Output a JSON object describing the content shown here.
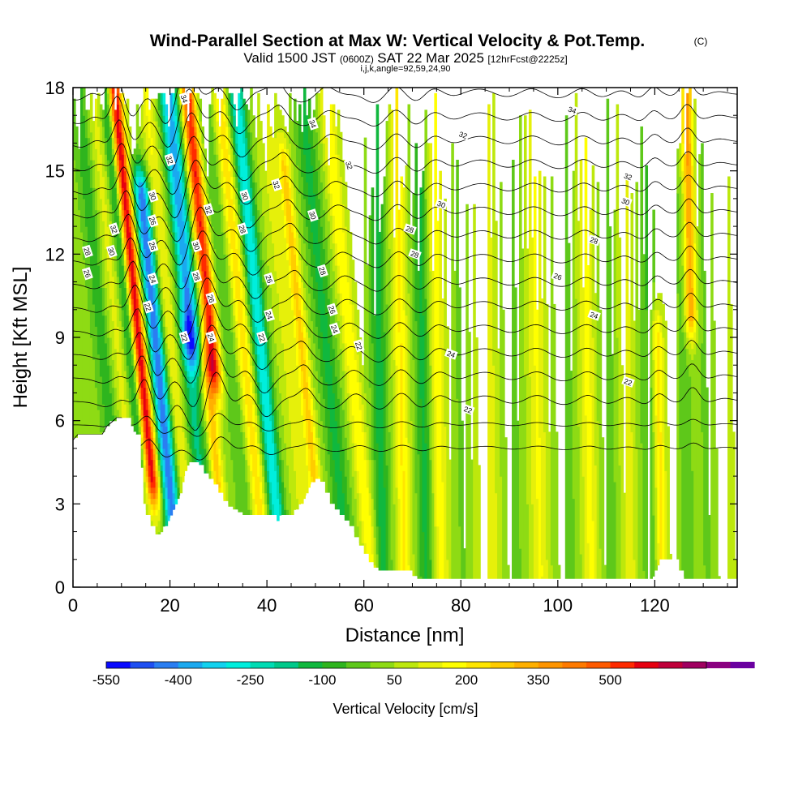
{
  "chart_data": {
    "type": "heatmap",
    "title": "Wind-Parallel Section at Max W: Vertical Velocity & Pot.Temp.",
    "title_mark": "(C)",
    "subtitle": {
      "valid": "Valid 1500 JST",
      "utc": "(0600Z)",
      "date": "SAT 22 Mar 2025",
      "forecast": "[12hrFcst@2225z]"
    },
    "params": "i,j,k,angle=92,59,24,90",
    "xlabel": "Distance [nm]",
    "ylabel": "Height [Kft MSL]",
    "xlim": [
      0,
      137
    ],
    "ylim": [
      0,
      18
    ],
    "xticks": [
      0,
      20,
      40,
      60,
      80,
      100,
      120
    ],
    "yticks": [
      0,
      3,
      6,
      9,
      12,
      15,
      18
    ],
    "grid": false,
    "colorbar": {
      "label": "Vertical Velocity [cm/s]",
      "min": -550,
      "max": 700,
      "step": 50,
      "tick_values": [
        -550,
        -400,
        -250,
        -100,
        50,
        200,
        350,
        500
      ],
      "tick_labels": [
        "-550",
        "-400",
        "-250",
        "-100",
        "50",
        "200",
        "350",
        "500"
      ],
      "colors": [
        "#0a0aff",
        "#1f4ff2",
        "#2a7ef2",
        "#1aa9f0",
        "#12d2ef",
        "#00eedd",
        "#00dcb4",
        "#00c98a",
        "#10b83e",
        "#2eb51e",
        "#5ec81a",
        "#8edb14",
        "#bde80c",
        "#e6f00a",
        "#ffff00",
        "#ffe600",
        "#ffcc00",
        "#ffb000",
        "#ff9500",
        "#ff7a00",
        "#ff5a00",
        "#ff2a00",
        "#e60010",
        "#c0003a",
        "#a00060",
        "#8a0080",
        "#6a00a0"
      ]
    },
    "w_features": [
      {
        "x": 3,
        "w": -20,
        "width": 2.0,
        "bottom": 6,
        "top": 18
      },
      {
        "x": 6,
        "w": -120,
        "width": 1.6,
        "bottom": 4,
        "top": 18
      },
      {
        "x": 9,
        "w": 80,
        "width": 1.8,
        "bottom": 5,
        "top": 18
      },
      {
        "x": 11.5,
        "w": -180,
        "width": 1.2,
        "bottom": 5,
        "top": 18
      },
      {
        "x": 13.5,
        "w": 560,
        "width": 1.3,
        "bottom": 4,
        "top": 18
      },
      {
        "x": 17,
        "w": -480,
        "width": 1.6,
        "bottom": 2,
        "top": 14
      },
      {
        "x": 20,
        "w": 120,
        "width": 1.5,
        "bottom": 3,
        "top": 18
      },
      {
        "x": 24.5,
        "w": -430,
        "width": 1.8,
        "bottom": 9,
        "top": 18
      },
      {
        "x": 23.5,
        "w": -200,
        "width": 1.8,
        "bottom": 4,
        "top": 9
      },
      {
        "x": 28.5,
        "w": 520,
        "width": 1.4,
        "bottom": 8,
        "top": 18
      },
      {
        "x": 27,
        "w": 250,
        "width": 1.2,
        "bottom": 4,
        "top": 8
      },
      {
        "x": 32,
        "w": -80,
        "width": 1.8,
        "bottom": 3,
        "top": 18
      },
      {
        "x": 35,
        "w": 200,
        "width": 1.5,
        "bottom": 3,
        "top": 18
      },
      {
        "x": 38.5,
        "w": -330,
        "width": 1.6,
        "bottom": 2,
        "top": 18
      },
      {
        "x": 44,
        "w": 80,
        "width": 2.0,
        "bottom": 3,
        "top": 18
      },
      {
        "x": 47,
        "w": 230,
        "width": 1.2,
        "bottom": 3,
        "top": 15
      },
      {
        "x": 52,
        "w": -150,
        "width": 2.0,
        "bottom": 2,
        "top": 18
      },
      {
        "x": 57,
        "w": 160,
        "width": 1.5,
        "bottom": 1,
        "top": 18
      },
      {
        "x": 63,
        "w": -160,
        "width": 1.6,
        "bottom": 0.5,
        "top": 18
      },
      {
        "x": 67.5,
        "w": 170,
        "width": 1.4,
        "bottom": 0.5,
        "top": 18
      },
      {
        "x": 72,
        "w": -150,
        "width": 1.6,
        "bottom": 0.5,
        "top": 18
      },
      {
        "x": 75,
        "w": 140,
        "width": 1.6,
        "bottom": 0.5,
        "top": 18
      },
      {
        "x": 79.5,
        "w": -40,
        "width": 1.4,
        "bottom": 0.5,
        "top": 18
      },
      {
        "x": 85,
        "w": 110,
        "width": 2.4,
        "bottom": 0.5,
        "top": 18
      },
      {
        "x": 90,
        "w": -60,
        "width": 2.0,
        "bottom": 0.5,
        "top": 18
      },
      {
        "x": 95.5,
        "w": 120,
        "width": 1.8,
        "bottom": 0.5,
        "top": 18
      },
      {
        "x": 101,
        "w": -70,
        "width": 2.0,
        "bottom": 0.5,
        "top": 18
      },
      {
        "x": 106,
        "w": 130,
        "width": 1.6,
        "bottom": 0.5,
        "top": 18
      },
      {
        "x": 110,
        "w": -60,
        "width": 1.8,
        "bottom": 0.5,
        "top": 18
      },
      {
        "x": 114,
        "w": 90,
        "width": 1.6,
        "bottom": 0.5,
        "top": 18
      },
      {
        "x": 118.5,
        "w": -90,
        "width": 1.8,
        "bottom": 0.5,
        "top": 18
      },
      {
        "x": 120.5,
        "w": 200,
        "width": 1.2,
        "bottom": 0.5,
        "top": 9
      },
      {
        "x": 126,
        "w": -60,
        "width": 1.6,
        "bottom": 0.5,
        "top": 14
      },
      {
        "x": 127.5,
        "w": 330,
        "width": 1.2,
        "bottom": 10,
        "top": 18
      },
      {
        "x": 130,
        "w": -40,
        "width": 1.6,
        "bottom": 0.5,
        "top": 18
      },
      {
        "x": 134,
        "w": 60,
        "width": 1.6,
        "bottom": 0.5,
        "top": 18
      }
    ],
    "terrain": {
      "x": [
        0,
        1,
        6,
        7,
        9,
        10,
        12,
        12.5,
        13,
        14,
        14.5,
        15,
        16,
        17,
        18,
        19,
        20,
        21,
        22,
        23,
        24,
        25,
        26,
        27,
        28,
        29,
        30,
        31,
        32,
        33,
        34,
        35,
        36,
        37,
        38,
        39,
        40,
        41,
        42,
        43,
        44,
        45,
        46,
        47,
        48,
        49,
        50,
        51,
        52,
        53,
        54,
        55,
        56,
        57,
        58,
        59,
        60,
        61,
        62,
        63,
        66,
        69,
        70,
        71,
        78,
        80,
        81,
        88,
        100,
        108,
        117,
        119,
        119.5,
        120,
        121,
        122,
        124,
        125,
        126,
        128,
        136,
        137
      ],
      "y": [
        5.3,
        5.5,
        5.5,
        5.8,
        6.1,
        6.1,
        5.8,
        5.6,
        5.5,
        4.3,
        3.0,
        2.6,
        2.2,
        1.9,
        1.9,
        2.2,
        2.5,
        2.8,
        3.3,
        4.0,
        4.5,
        4.5,
        4.4,
        4.1,
        3.9,
        3.7,
        3.4,
        3.1,
        2.9,
        2.8,
        2.7,
        2.6,
        2.6,
        2.6,
        2.6,
        2.6,
        2.6,
        2.6,
        2.3,
        2.6,
        2.6,
        2.6,
        2.8,
        3.0,
        3.3,
        3.7,
        3.9,
        3.8,
        3.4,
        3.0,
        2.8,
        2.6,
        2.4,
        2.2,
        1.8,
        1.5,
        1.2,
        0.9,
        0.7,
        0.6,
        0.6,
        0.6,
        0.4,
        0.3,
        0.3,
        0.3,
        0.3,
        0.3,
        0.3,
        0.3,
        0.3,
        0.3,
        0.3,
        0.6,
        1.0,
        1.0,
        1.0,
        0.6,
        0.3,
        0.3,
        0.3,
        0.3
      ]
    },
    "contour_levels": [
      20,
      21,
      22,
      23,
      24,
      25,
      26,
      27,
      28,
      29,
      30,
      31,
      32,
      33,
      34,
      35
    ],
    "contour_labels": [
      {
        "text": "34",
        "x": 23,
        "y": 17.6
      },
      {
        "text": "34",
        "x": 49.5,
        "y": 16.7
      },
      {
        "text": "34",
        "x": 103,
        "y": 17.2
      },
      {
        "text": "32",
        "x": 20,
        "y": 15.4
      },
      {
        "text": "32",
        "x": 57,
        "y": 15.2
      },
      {
        "text": "32",
        "x": 80.5,
        "y": 16.3
      },
      {
        "text": "32",
        "x": 114.5,
        "y": 14.8
      },
      {
        "text": "32",
        "x": 28,
        "y": 13.6
      },
      {
        "text": "32",
        "x": 42,
        "y": 14.5
      },
      {
        "text": "32",
        "x": 8.5,
        "y": 12.9
      },
      {
        "text": "30",
        "x": 16.5,
        "y": 14.1
      },
      {
        "text": "30",
        "x": 35.5,
        "y": 14.1
      },
      {
        "text": "30",
        "x": 49.5,
        "y": 13.4
      },
      {
        "text": "30",
        "x": 76,
        "y": 13.8
      },
      {
        "text": "30",
        "x": 114,
        "y": 13.9
      },
      {
        "text": "30",
        "x": 25.5,
        "y": 12.3
      },
      {
        "text": "30",
        "x": 8,
        "y": 12.1
      },
      {
        "text": "28",
        "x": 3,
        "y": 12.1
      },
      {
        "text": "28",
        "x": 35,
        "y": 12.9
      },
      {
        "text": "28",
        "x": 69.5,
        "y": 12.9
      },
      {
        "text": "28",
        "x": 107.5,
        "y": 12.5
      },
      {
        "text": "28",
        "x": 25.5,
        "y": 11.2
      },
      {
        "text": "28",
        "x": 51.5,
        "y": 11.4
      },
      {
        "text": "28",
        "x": 70.5,
        "y": 12.0
      },
      {
        "text": "26",
        "x": 3,
        "y": 11.3
      },
      {
        "text": "26",
        "x": 16.5,
        "y": 13.2
      },
      {
        "text": "26",
        "x": 16.5,
        "y": 12.3
      },
      {
        "text": "26",
        "x": 40.5,
        "y": 11.1
      },
      {
        "text": "26",
        "x": 53.5,
        "y": 10.0
      },
      {
        "text": "26",
        "x": 100,
        "y": 11.2
      },
      {
        "text": "26",
        "x": 28.5,
        "y": 10.4
      },
      {
        "text": "24",
        "x": 16.5,
        "y": 11.1
      },
      {
        "text": "24",
        "x": 40.5,
        "y": 9.8
      },
      {
        "text": "24",
        "x": 54,
        "y": 9.3
      },
      {
        "text": "24",
        "x": 78,
        "y": 8.4
      },
      {
        "text": "24",
        "x": 107.5,
        "y": 9.8
      },
      {
        "text": "24",
        "x": 28.5,
        "y": 9.0
      },
      {
        "text": "22",
        "x": 15.5,
        "y": 10.1
      },
      {
        "text": "22",
        "x": 39,
        "y": 9.0
      },
      {
        "text": "22",
        "x": 59,
        "y": 8.7
      },
      {
        "text": "22",
        "x": 81.5,
        "y": 6.4
      },
      {
        "text": "22",
        "x": 114.5,
        "y": 7.4
      },
      {
        "text": "22",
        "x": 23,
        "y": 9.0
      }
    ]
  }
}
